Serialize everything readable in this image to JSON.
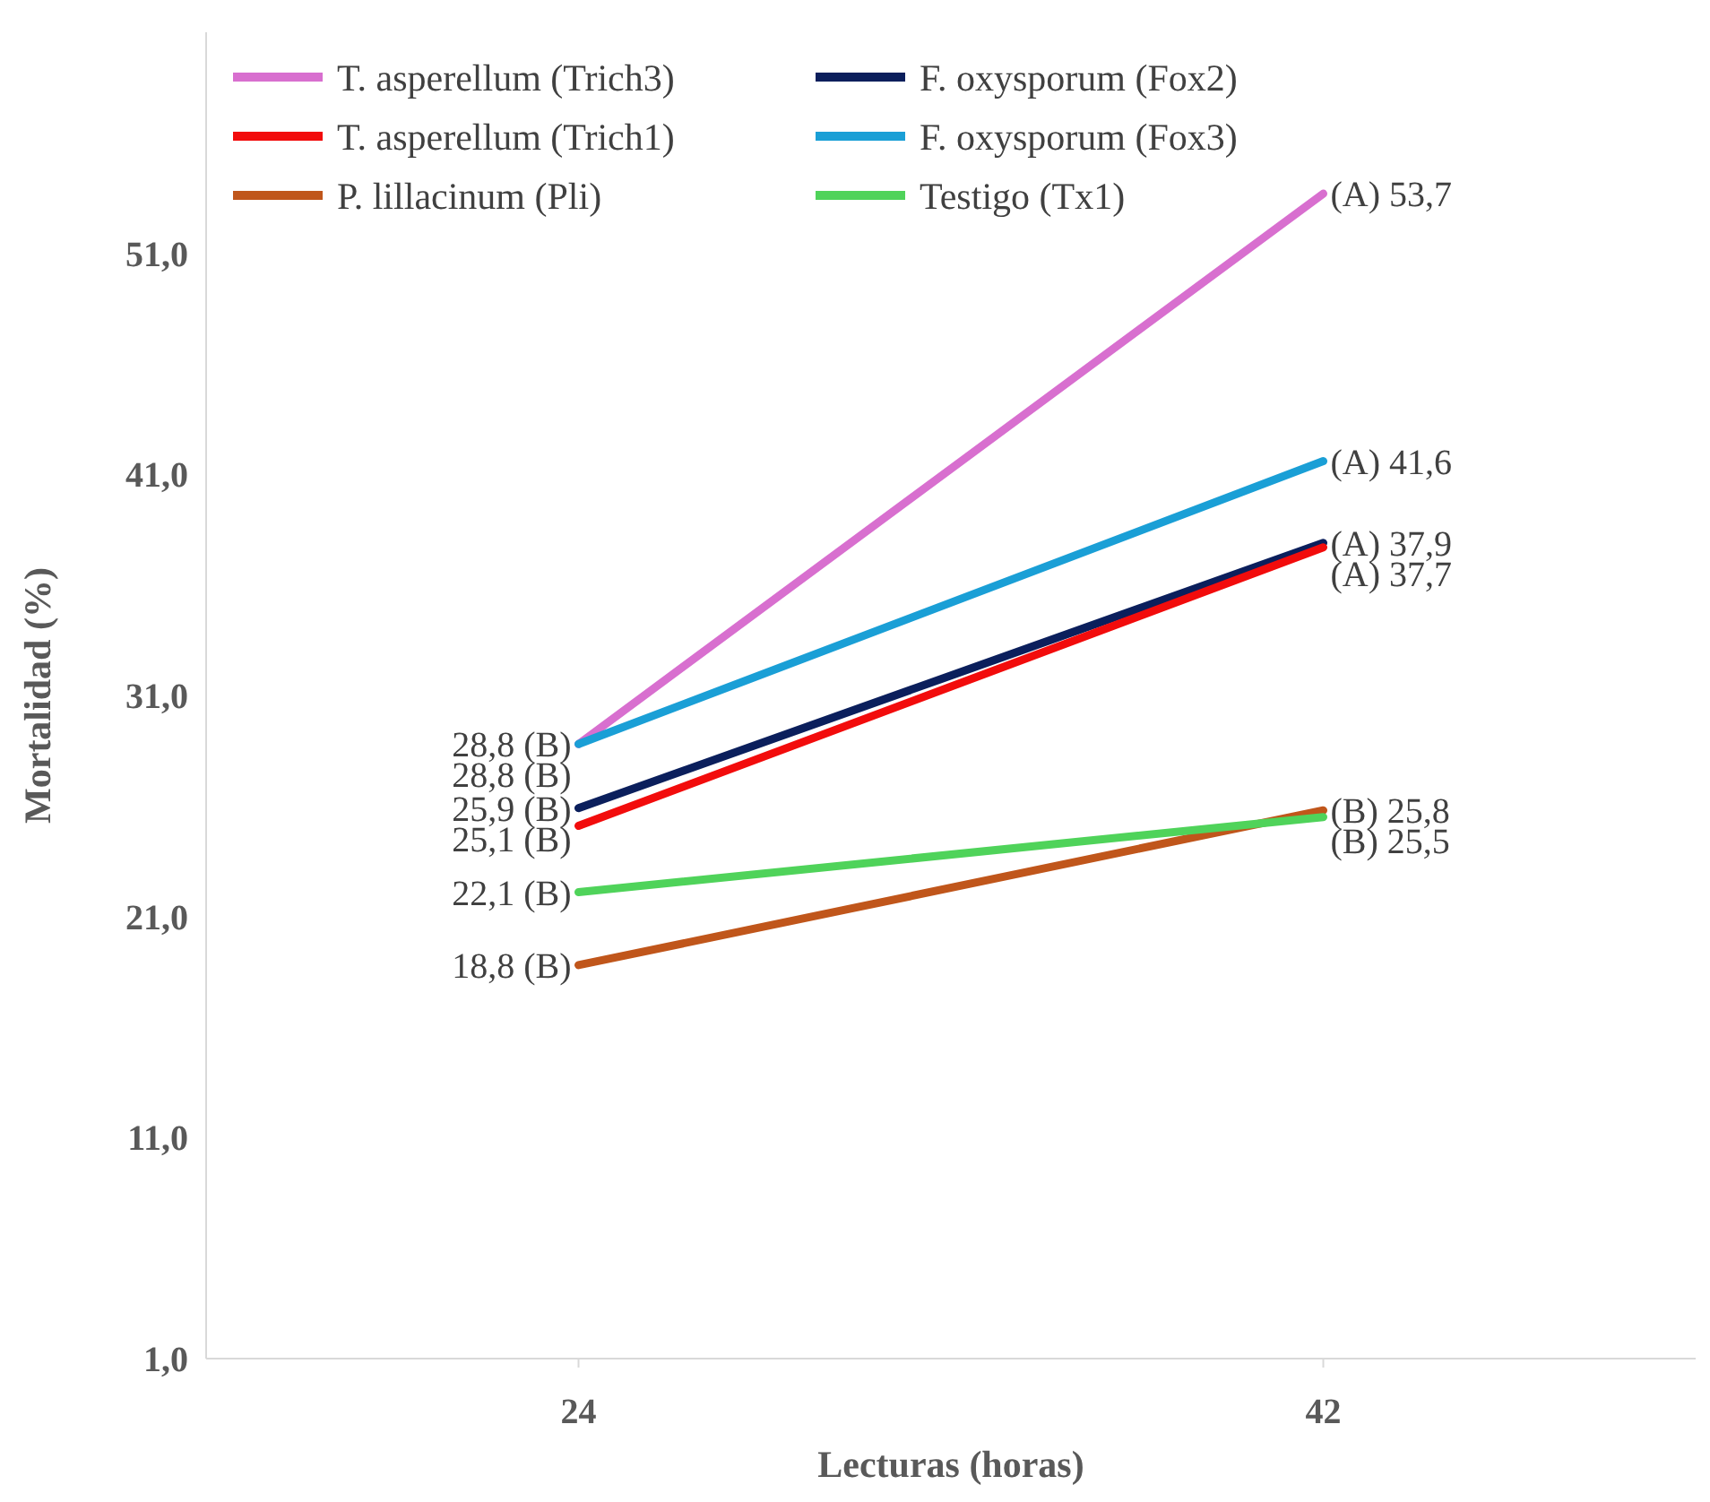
{
  "chart_data": {
    "type": "line",
    "xlabel": "Lecturas (horas)",
    "ylabel": "Mortalidad (%)",
    "x": [
      24,
      42
    ],
    "xlim": [
      15,
      51
    ],
    "xticks": [
      24,
      42
    ],
    "ylim": [
      1,
      61
    ],
    "yticks": [
      {
        "value": 1,
        "label": "1,0"
      },
      {
        "value": 11,
        "label": "11,0"
      },
      {
        "value": 21,
        "label": "21,0"
      },
      {
        "value": 31,
        "label": "31,0"
      },
      {
        "value": 41,
        "label": "41,0"
      },
      {
        "value": 51,
        "label": "51,0"
      }
    ],
    "grid": false,
    "legend": "top",
    "marker": "none",
    "line_style": "solid",
    "series": [
      {
        "name": "T. asperellum (Trich3)",
        "color": "#d86fcf",
        "values": [
          28.8,
          53.7
        ],
        "value_labels": [
          "28,8 (B)",
          "(A) 53,7"
        ]
      },
      {
        "name": "F. oxysporum  (Fox2)",
        "color": "#0b1f5c",
        "values": [
          25.9,
          37.9
        ],
        "value_labels": [
          "25,9 (B)",
          "(A) 37,9"
        ]
      },
      {
        "name": "T. asperellum (Trich1)",
        "color": "#f20c0c",
        "values": [
          25.1,
          37.7
        ],
        "value_labels": [
          "25,1 (B)",
          "(A) 37,7"
        ]
      },
      {
        "name": "F. oxysporum  (Fox3)",
        "color": "#1a9fd6",
        "values": [
          28.8,
          41.6
        ],
        "value_labels": [
          "28,8 (B)",
          "(A) 41,6"
        ]
      },
      {
        "name": "P. lillacinum (Pli)",
        "color": "#c0561b",
        "values": [
          18.8,
          25.8
        ],
        "value_labels": [
          "18,8 (B)",
          "(B) 25,8"
        ]
      },
      {
        "name": "Testigo (Tx1)",
        "color": "#4fd35a",
        "values": [
          22.1,
          25.5
        ],
        "value_labels": [
          "22,1 (B)",
          "(B) 25,5"
        ]
      }
    ]
  }
}
